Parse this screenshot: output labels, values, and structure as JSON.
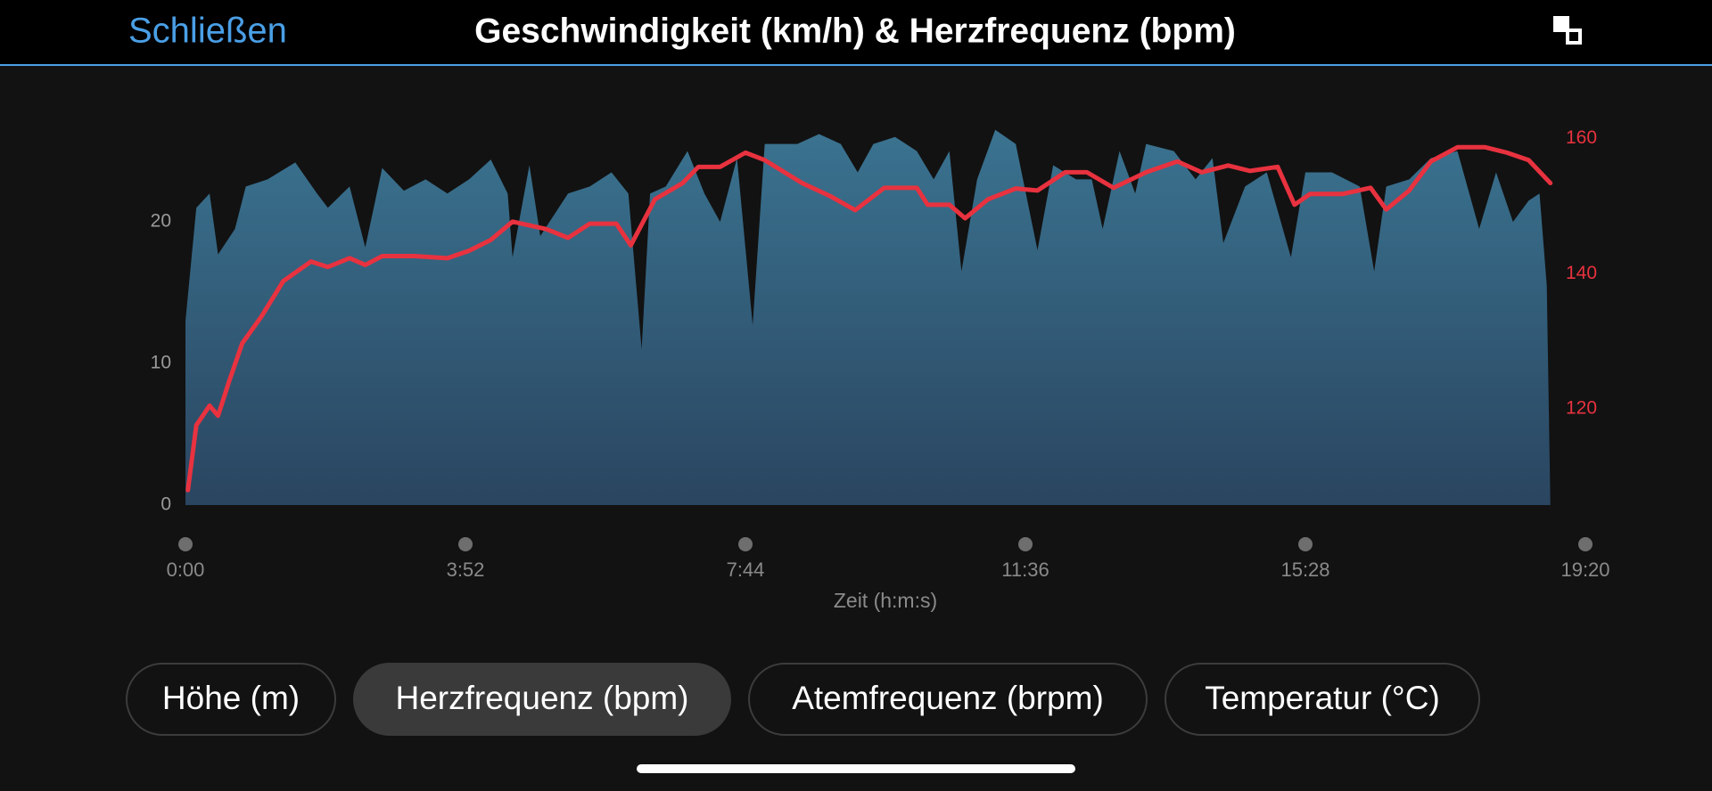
{
  "header": {
    "close": "Schließen",
    "title": "Geschwindigkeit (km/h) & Herzfrequenz (bpm)"
  },
  "chart_data": {
    "type": "combo",
    "x_label": "Zeit (h:m:s)",
    "xlim": [
      0,
      1160
    ],
    "xticks": [
      {
        "value": 0,
        "label": "0:00"
      },
      {
        "value": 232,
        "label": "3:52"
      },
      {
        "value": 464,
        "label": "7:44"
      },
      {
        "value": 696,
        "label": "11:36"
      },
      {
        "value": 928,
        "label": "15:28"
      },
      {
        "value": 1160,
        "label": "19:20"
      }
    ],
    "ylim": [
      0,
      26.8
    ],
    "yticks": [
      0,
      10,
      20
    ],
    "y2lim": [
      105.8,
      161.9
    ],
    "y2ticks": [
      120,
      140,
      160
    ],
    "series": [
      {
        "type": "area",
        "color": "#3a6f8a",
        "x": [
          0,
          9,
          20,
          27,
          41,
          50,
          68,
          91,
          109,
          118,
          136,
          149,
          163,
          181,
          199,
          217,
          235,
          253,
          267,
          271,
          285,
          294,
          317,
          335,
          353,
          367,
          378,
          385,
          398,
          416,
          430,
          443,
          457,
          470,
          480,
          507,
          525,
          543,
          557,
          570,
          588,
          606,
          620,
          633,
          643,
          656,
          671,
          688,
          706,
          719,
          738,
          751,
          760,
          774,
          787,
          796,
          819,
          837,
          851,
          860,
          878,
          896,
          916,
          928,
          950,
          973,
          985,
          995,
          1014,
          1032,
          1054,
          1072,
          1086,
          1100,
          1113,
          1122,
          1128,
          1131
        ],
        "values": [
          13,
          21,
          22,
          17.7,
          19.5,
          22.5,
          23,
          24.2,
          22,
          21,
          22.5,
          18.2,
          23.8,
          22.2,
          23,
          22,
          23,
          24.4,
          22,
          17.5,
          24,
          19,
          22,
          22.5,
          23.5,
          22,
          11,
          22,
          22.5,
          25,
          22,
          20,
          24.5,
          12.7,
          25.5,
          25.5,
          26.2,
          25.5,
          23.5,
          25.5,
          26,
          25,
          23,
          25,
          16.5,
          23,
          26.5,
          25.5,
          18,
          24,
          23,
          23,
          19.5,
          25,
          22,
          25.5,
          25,
          23,
          24.5,
          18.5,
          22.5,
          23.5,
          17.5,
          23.5,
          23.5,
          22.5,
          16.5,
          22.5,
          23,
          24.5,
          25,
          19.5,
          23.5,
          20,
          21.5,
          22,
          15.5,
          0
        ]
      },
      {
        "type": "line",
        "axis": "y2",
        "color": "#e8323f",
        "x": [
          2,
          9,
          20,
          27,
          36,
          47,
          63,
          81,
          104,
          118,
          136,
          149,
          163,
          190,
          217,
          235,
          253,
          271,
          299,
          317,
          335,
          357,
          369,
          389,
          412,
          425,
          443,
          464,
          480,
          511,
          534,
          555,
          579,
          606,
          615,
          633,
          646,
          665,
          688,
          706,
          729,
          747,
          769,
          796,
          822,
          842,
          864,
          882,
          905,
          919,
          932,
          959,
          982,
          995,
          1014,
          1032,
          1054,
          1077,
          1095,
          1113,
          1131
        ],
        "values": [
          108,
          117.6,
          120.5,
          119,
          124,
          129.7,
          133.7,
          138.9,
          141.8,
          141,
          142.3,
          141.3,
          142.6,
          142.6,
          142.3,
          143.4,
          145,
          147.7,
          146.6,
          145.3,
          147.4,
          147.4,
          144.2,
          151,
          153.4,
          155.8,
          155.8,
          157.9,
          156.8,
          153.4,
          151.5,
          149.4,
          152.7,
          152.7,
          150.2,
          150.2,
          148.2,
          151,
          152.6,
          152.3,
          155,
          155,
          152.7,
          155,
          156.6,
          155,
          156,
          155.2,
          155.8,
          150.2,
          151.8,
          151.8,
          152.7,
          149.5,
          152.3,
          156.6,
          158.7,
          158.7,
          157.9,
          156.8,
          153.4
        ]
      }
    ]
  },
  "tabs": {
    "selected": 1,
    "items": [
      "Höhe (m)",
      "Herzfrequenz (bpm)",
      "Atemfrequenz (brpm)",
      "Temperatur (°C)"
    ]
  }
}
